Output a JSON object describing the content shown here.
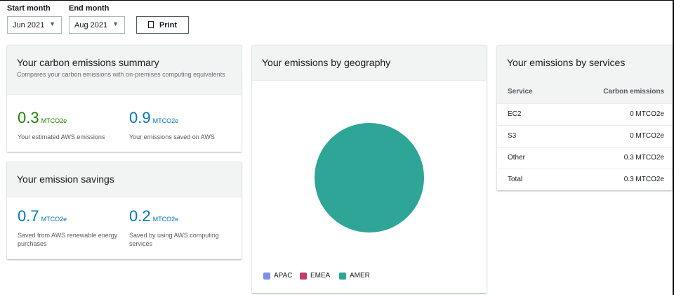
{
  "filters": {
    "start_label": "Start month",
    "start_value": "Jun 2021",
    "end_label": "End month",
    "end_value": "Aug 2021",
    "print_label": "Print"
  },
  "summary": {
    "title": "Your carbon emissions summary",
    "subtitle": "Compares your carbon emissions with on-premises computing equivalents",
    "metrics": [
      {
        "value": "0.3",
        "unit": "MTCO2e",
        "desc": "Your estimated AWS emissions"
      },
      {
        "value": "0.9",
        "unit": "MTCO2e",
        "desc": "Your emissions saved on AWS"
      }
    ]
  },
  "savings": {
    "title": "Your emission savings",
    "metrics": [
      {
        "value": "0.7",
        "unit": "MTCO2e",
        "desc": "Saved from AWS renewable energy purchases"
      },
      {
        "value": "0.2",
        "unit": "MTCO2e",
        "desc": "Saved by using AWS computing services"
      }
    ]
  },
  "geography": {
    "title": "Your emissions by geography",
    "chart_data": {
      "type": "pie",
      "categories": [
        "APAC",
        "EMEA",
        "AMER"
      ],
      "values": [
        0,
        0,
        100
      ],
      "colors": [
        "#7d8fe3",
        "#c33d69",
        "#2ea597"
      ],
      "legend": "bottom"
    }
  },
  "services": {
    "title": "Your emissions by services",
    "headers": [
      "Service",
      "Carbon emissions"
    ],
    "rows": [
      [
        "EC2",
        "0 MTCO2e"
      ],
      [
        "S3",
        "0 MTCO2e"
      ],
      [
        "Other",
        "0.3 MTCO2e"
      ],
      [
        "Total",
        "0.3 MTCO2e"
      ]
    ]
  },
  "colors": {
    "green": "#1d8102",
    "blue": "#0073bb"
  }
}
